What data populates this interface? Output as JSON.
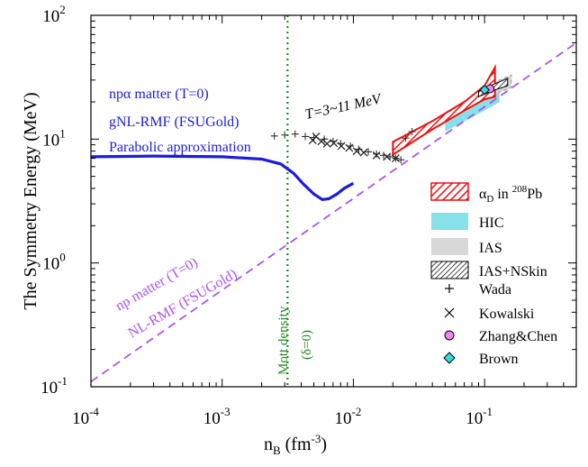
{
  "chart_data": {
    "type": "line",
    "x_scale": "log",
    "y_scale": "log",
    "xlim": [
      0.0001,
      0.5
    ],
    "ylim": [
      0.1,
      100
    ],
    "xlabel": {
      "base": "n",
      "sub": "B",
      "unit_prefix": " (fm",
      "unit_exp": "-3",
      "unit_suffix": ")"
    },
    "ylabel": "The Symmetry Energy (MeV)",
    "x_ticks": [
      {
        "value": 0.0001,
        "base": "10",
        "exp": "-4"
      },
      {
        "value": 0.001,
        "base": "10",
        "exp": "-3"
      },
      {
        "value": 0.01,
        "base": "10",
        "exp": "-2"
      },
      {
        "value": 0.1,
        "base": "10",
        "exp": "-1"
      }
    ],
    "y_ticks": [
      {
        "value": 0.1,
        "base": "10",
        "exp": "-1"
      },
      {
        "value": 1,
        "base": "10",
        "exp": "0"
      },
      {
        "value": 10,
        "base": "10",
        "exp": "1"
      },
      {
        "value": 100,
        "base": "10",
        "exp": "2"
      }
    ],
    "series": [
      {
        "kind": "solid",
        "color": "#1c1cdc",
        "x": [
          0.0001,
          0.0003,
          0.001,
          0.002,
          0.0028,
          0.0035,
          0.0042,
          0.005,
          0.0058,
          0.0065,
          0.0075,
          0.0085,
          0.01
        ],
        "y": [
          7.2,
          7.3,
          7.2,
          6.9,
          6.3,
          5.3,
          4.3,
          3.6,
          3.25,
          3.3,
          3.6,
          4.0,
          4.4
        ]
      },
      {
        "kind": "dashed",
        "color": "#aa55ee",
        "x": [
          0.0001,
          0.5
        ],
        "y": [
          0.11,
          60
        ]
      }
    ],
    "mott_line": {
      "x": 0.00315,
      "color": "#228b22"
    },
    "annotations": {
      "blue_lines": [
        "npα matter (T=0)",
        "gNL-RMF (FSUGold)",
        "Parabolic approximation"
      ],
      "purple_lines": [
        "np matter (T=0)",
        "NL-RMF (FSUGold)"
      ],
      "mott_lines": [
        "Mott density",
        "(δ=0)"
      ],
      "temperature": "T=3~11 MeV"
    },
    "wada_points": [
      {
        "x": 0.0025,
        "y": 10.6
      },
      {
        "x": 0.003,
        "y": 10.8
      },
      {
        "x": 0.0036,
        "y": 11.0
      },
      {
        "x": 0.0043,
        "y": 10.5
      },
      {
        "x": 0.005,
        "y": 10.3
      },
      {
        "x": 0.006,
        "y": 10.0
      },
      {
        "x": 0.007,
        "y": 9.6
      },
      {
        "x": 0.008,
        "y": 9.2
      },
      {
        "x": 0.0095,
        "y": 8.8
      },
      {
        "x": 0.011,
        "y": 8.3
      },
      {
        "x": 0.013,
        "y": 7.9
      },
      {
        "x": 0.015,
        "y": 7.6
      },
      {
        "x": 0.017,
        "y": 7.4
      },
      {
        "x": 0.019,
        "y": 7.2
      },
      {
        "x": 0.021,
        "y": 7.0
      },
      {
        "x": 0.023,
        "y": 6.8
      },
      {
        "x": 0.025,
        "y": 10.2
      },
      {
        "x": 0.028,
        "y": 11.5
      }
    ],
    "kowalski_points": [
      {
        "x": 0.0049,
        "y": 9.8
      },
      {
        "x": 0.0052,
        "y": 10.5
      },
      {
        "x": 0.0057,
        "y": 9.6
      },
      {
        "x": 0.0063,
        "y": 9.2
      },
      {
        "x": 0.0071,
        "y": 9.3
      },
      {
        "x": 0.0081,
        "y": 8.8
      },
      {
        "x": 0.0093,
        "y": 8.5
      },
      {
        "x": 0.0106,
        "y": 8.0
      },
      {
        "x": 0.012,
        "y": 7.8
      },
      {
        "x": 0.015,
        "y": 7.4
      },
      {
        "x": 0.018,
        "y": 7.2
      },
      {
        "x": 0.021,
        "y": 7.0
      }
    ],
    "zhang_chen_point": {
      "x": 0.11,
      "y": 25.5
    },
    "brown_point": {
      "x": 0.1,
      "y": 25.0
    },
    "hic_band": {
      "x_low": [
        0.05,
        0.08,
        0.11,
        0.13
      ],
      "y_low": [
        11.5,
        15,
        18,
        20
      ],
      "y_high": [
        14,
        19,
        24,
        28
      ]
    },
    "ias_band": {
      "x": [
        0.07,
        0.1,
        0.13,
        0.16
      ],
      "y_low": [
        17,
        21,
        24,
        26
      ],
      "y_high": [
        20,
        26,
        30,
        33
      ]
    },
    "ias_nskin_band": {
      "x": [
        0.09,
        0.12,
        0.15
      ],
      "y_low": [
        22,
        25,
        27
      ],
      "y_high": [
        24.5,
        28,
        31
      ]
    },
    "alpha_d_band": {
      "x": [
        0.02,
        0.04,
        0.07,
        0.1,
        0.12
      ],
      "y_low": [
        7.5,
        12,
        17,
        21,
        22
      ],
      "y_high": [
        9.5,
        14,
        20,
        27,
        38
      ]
    },
    "legend": {
      "placement": "right",
      "entries": [
        {
          "key": "alpha",
          "pre": "α",
          "sub": "D",
          "mid": " in ",
          "sup": "208",
          "post": "Pb"
        },
        {
          "key": "hic",
          "label": "HIC"
        },
        {
          "key": "ias",
          "label": "IAS"
        },
        {
          "key": "ias_nskin",
          "label": "IAS+NSkin"
        },
        {
          "key": "wada",
          "label": "Wada"
        },
        {
          "key": "kowalski",
          "label": "Kowalski"
        },
        {
          "key": "zhang",
          "label": "Zhang&Chen"
        },
        {
          "key": "brown",
          "label": "Brown"
        }
      ]
    },
    "colors": {
      "blue": "#1c1cdc",
      "purple": "#aa55ee",
      "green": "#228b22",
      "red": "#ee1111",
      "cyan": "#88e0e8",
      "gray": "#d8d8d8",
      "magenta": "#ee88ee",
      "teal": "#33dddd"
    }
  }
}
